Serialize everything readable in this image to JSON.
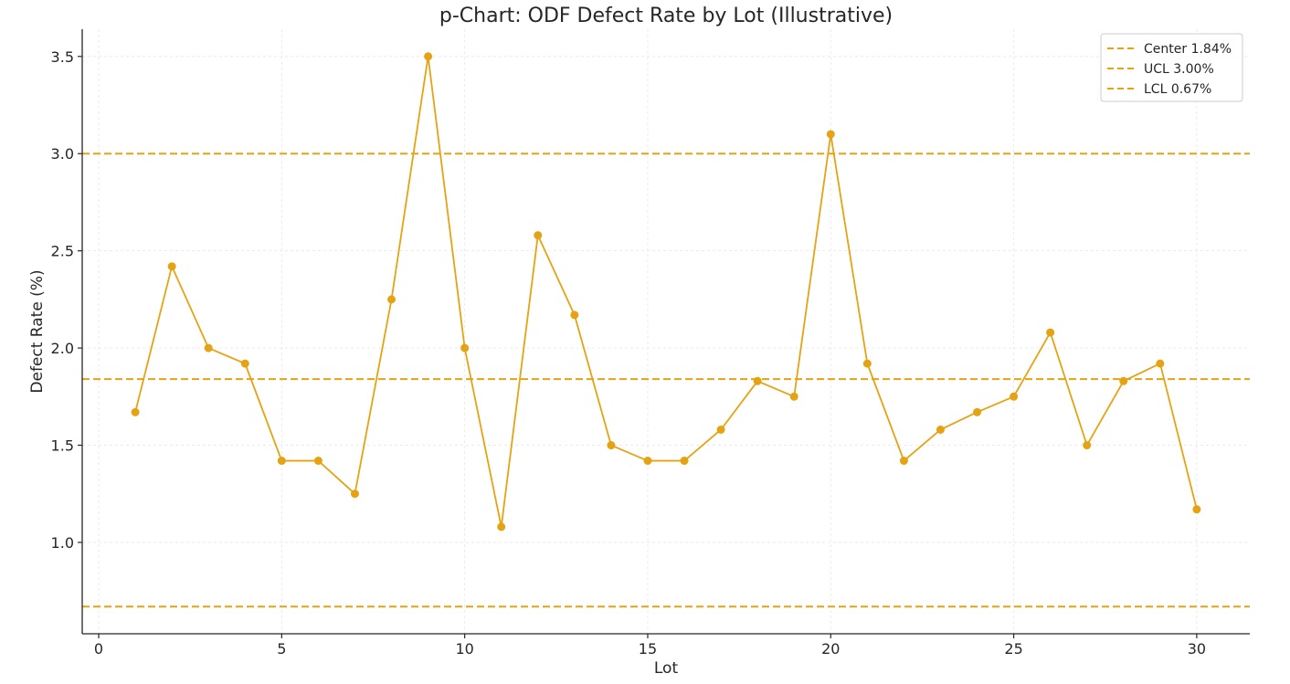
{
  "chart_data": {
    "type": "line",
    "title": "p-Chart: ODF Defect Rate by Lot (Illustrative)",
    "xlabel": "Lot",
    "ylabel": "Defect Rate (%)",
    "xlim": [
      -0.45,
      31.45
    ],
    "ylim": [
      0.53,
      3.64
    ],
    "xticks": [
      0,
      5,
      10,
      15,
      20,
      25,
      30
    ],
    "yticks": [
      1.0,
      1.5,
      2.0,
      2.5,
      3.0,
      3.5
    ],
    "xtick_labels": [
      "0",
      "5",
      "10",
      "15",
      "20",
      "25",
      "30"
    ],
    "ytick_labels": [
      "1.0",
      "1.5",
      "2.0",
      "2.5",
      "3.0",
      "3.5"
    ],
    "grid": true,
    "legend_position": "top-right",
    "series": [
      {
        "color": "#E5A314",
        "x": [
          1,
          2,
          3,
          4,
          5,
          6,
          7,
          8,
          9,
          10,
          11,
          12,
          13,
          14,
          15,
          16,
          17,
          18,
          19,
          20,
          21,
          22,
          23,
          24,
          25,
          26,
          27,
          28,
          29,
          30
        ],
        "y": [
          1.67,
          2.42,
          2.0,
          1.92,
          1.42,
          1.42,
          1.25,
          2.25,
          3.5,
          2.0,
          1.08,
          2.58,
          2.17,
          1.5,
          1.42,
          1.42,
          1.58,
          1.83,
          1.75,
          3.1,
          1.92,
          1.42,
          1.58,
          1.67,
          1.75,
          2.08,
          1.5,
          1.83,
          1.92,
          1.17
        ]
      }
    ],
    "reference_lines": [
      {
        "name": "Center 1.84%",
        "value": 1.84,
        "color": "#E5A314",
        "style": "dashed"
      },
      {
        "name": "UCL 3.00%",
        "value": 3.0,
        "color": "#E5A314",
        "style": "dashed"
      },
      {
        "name": "LCL 0.67%",
        "value": 0.67,
        "color": "#E5A314",
        "style": "dashed"
      }
    ]
  }
}
